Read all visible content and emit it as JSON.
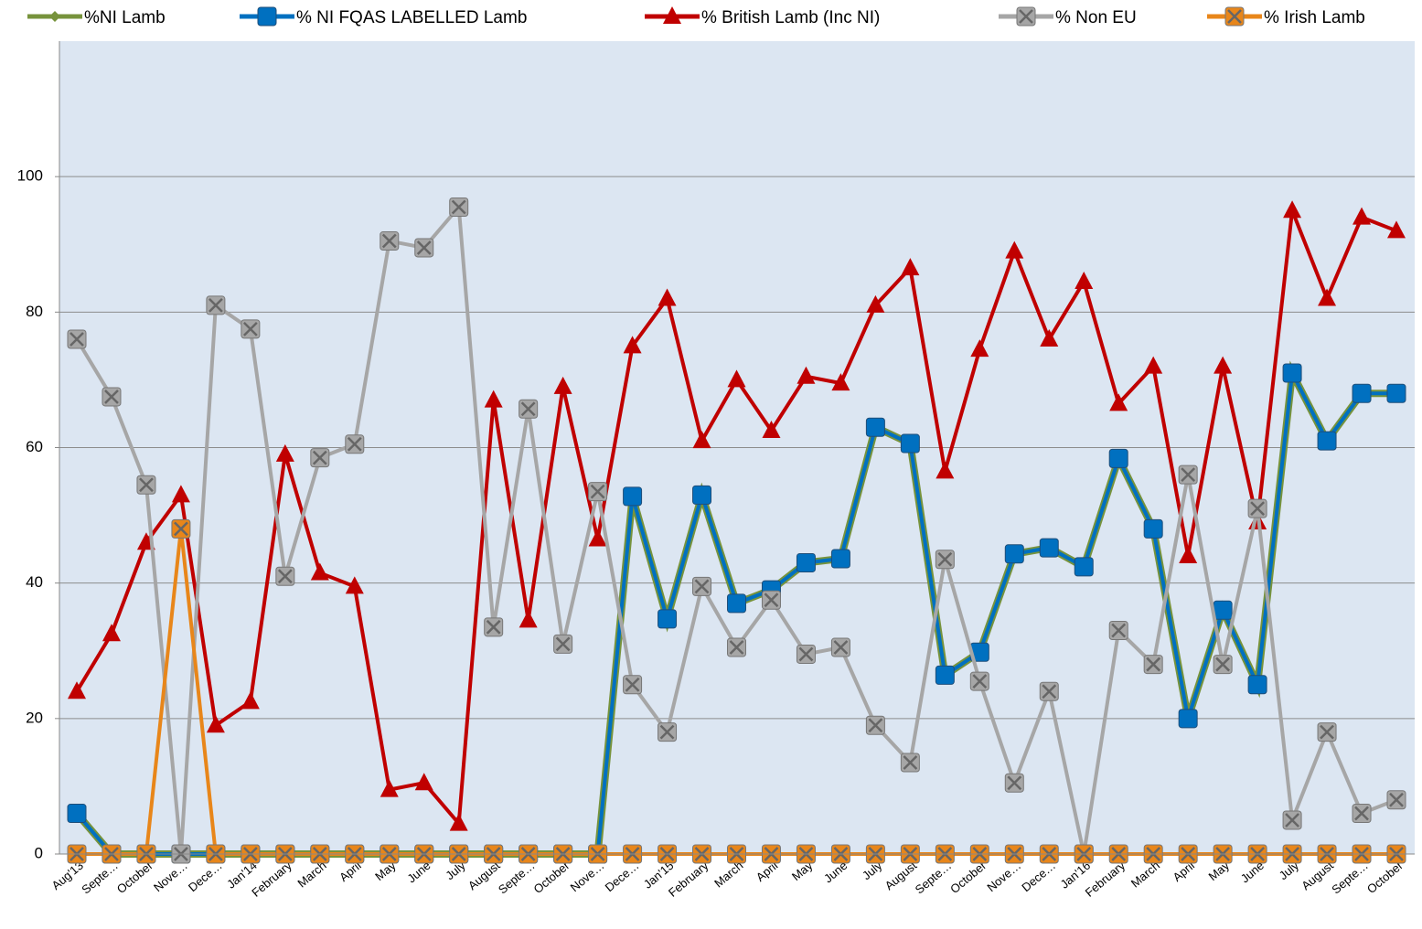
{
  "chart_data": {
    "type": "line",
    "categories": [
      "Aug'13",
      "Septe…",
      "October",
      "Nove…",
      "Dece…",
      "Jan'14",
      "February",
      "March",
      "April",
      "May",
      "June",
      "July",
      "August",
      "Septe…",
      "October",
      "Nove…",
      "Dece…",
      "Jan'15",
      "February",
      "March",
      "April",
      "May",
      "June",
      "July",
      "August",
      "Septe…",
      "October",
      "Nove…",
      "Dece…",
      "Jan'16",
      "February",
      "March",
      "April",
      "May",
      "June",
      "July",
      "August",
      "Septe…",
      "October"
    ],
    "series": [
      {
        "name": "%NI Lamb",
        "color": "#77933c",
        "marker": "diamond",
        "values": [
          6,
          0,
          0,
          0,
          0,
          0,
          0,
          0,
          0,
          0,
          0,
          0,
          0,
          0,
          0,
          0,
          52.8,
          34.7,
          53,
          37,
          39,
          43,
          43.6,
          63,
          60.6,
          26.4,
          29.8,
          44.3,
          45.2,
          42.4,
          58.4,
          48,
          20,
          36,
          25,
          71,
          61,
          68,
          68
        ]
      },
      {
        "name": "% NI FQAS LABELLED Lamb",
        "color": "#0070c0",
        "marker": "square",
        "values": [
          6,
          0,
          0,
          0,
          0,
          0,
          0,
          0,
          0,
          0,
          0,
          0,
          0,
          0,
          0,
          0,
          52.8,
          34.7,
          53,
          37,
          39,
          43,
          43.6,
          63,
          60.6,
          26.4,
          29.8,
          44.3,
          45.2,
          42.4,
          58.4,
          48,
          20,
          36,
          25,
          71,
          61,
          68,
          68
        ]
      },
      {
        "name": "% British Lamb (Inc NI)",
        "color": "#c00000",
        "marker": "triangle",
        "values": [
          24,
          32.5,
          46,
          53,
          19,
          22.5,
          59,
          41.5,
          39.5,
          9.5,
          10.5,
          4.5,
          67,
          34.5,
          69,
          46.5,
          75,
          82,
          61,
          70,
          62.5,
          70.5,
          69.5,
          81,
          86.5,
          56.5,
          74.5,
          89,
          76,
          84.5,
          66.5,
          72,
          44,
          72,
          49,
          95,
          82,
          94,
          92
        ]
      },
      {
        "name": "% Non EU",
        "color": "#a6a6a6",
        "marker": "xsquare",
        "values": [
          76,
          67.5,
          54.5,
          0,
          81,
          77.5,
          41,
          58.5,
          60.5,
          90.5,
          89.5,
          95.5,
          33.5,
          65.7,
          31,
          53.5,
          25,
          18,
          39.5,
          30.5,
          37.5,
          29.5,
          30.5,
          19,
          13.5,
          43.5,
          25.5,
          10.5,
          24,
          0,
          33,
          28,
          56,
          28,
          51,
          5,
          18,
          6,
          8
        ]
      },
      {
        "name": "% Irish Lamb",
        "color": "#e8861a",
        "marker": "xsquare",
        "values": [
          0,
          0,
          0,
          48,
          0,
          0,
          0,
          0,
          0,
          0,
          0,
          0,
          0,
          0,
          0,
          0,
          0,
          0,
          0,
          0,
          0,
          0,
          0,
          0,
          0,
          0,
          0,
          0,
          0,
          0,
          0,
          0,
          0,
          0,
          0,
          0,
          0,
          0,
          0
        ]
      }
    ],
    "ylim": [
      0,
      120
    ],
    "yticks": [
      0,
      20,
      40,
      60,
      80,
      100
    ],
    "grid": true,
    "legend": "top"
  }
}
